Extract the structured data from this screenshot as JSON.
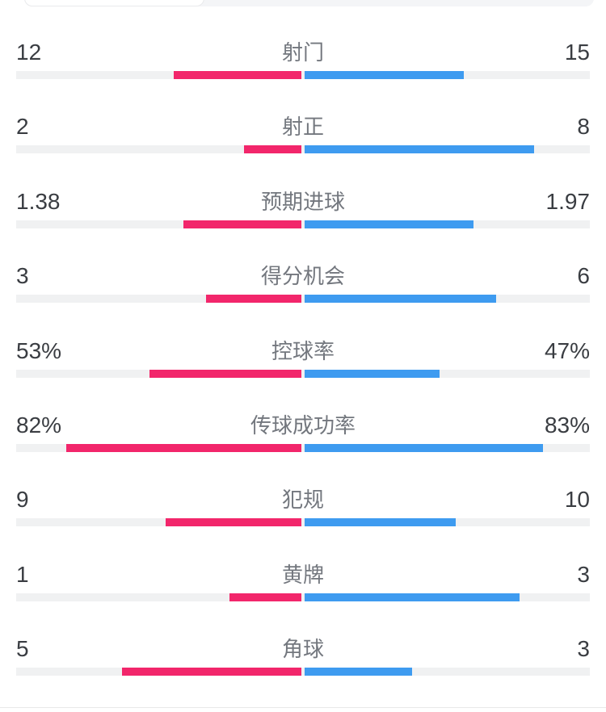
{
  "colors": {
    "home": "#f2266b",
    "away": "#3e9bf0",
    "track": "#f0f1f2",
    "value_text": "#3a3d42",
    "label_text": "#73777e",
    "divider": "#e9e9e9",
    "tabs_background": "#f4f5f7",
    "tab_selected_background": "#ffffff"
  },
  "stats": {
    "rows": [
      {
        "label": "射门",
        "home": "12",
        "away": "15"
      },
      {
        "label": "射正",
        "home": "2",
        "away": "8"
      },
      {
        "label": "预期进球",
        "home": "1.38",
        "away": "1.97"
      },
      {
        "label": "得分机会",
        "home": "3",
        "away": "6"
      },
      {
        "label": "控球率",
        "home": "53%",
        "away": "47%"
      },
      {
        "label": "传球成功率",
        "home": "82%",
        "away": "83%"
      },
      {
        "label": "犯规",
        "home": "9",
        "away": "10"
      },
      {
        "label": "黄牌",
        "home": "1",
        "away": "3"
      },
      {
        "label": "角球",
        "home": "5",
        "away": "3"
      }
    ]
  },
  "chart_data": {
    "type": "bar",
    "subtype": "bidirectional-comparison",
    "orientation": "horizontal, bars grow outward from center; left series pink, right series blue",
    "categories": [
      "射门",
      "射正",
      "预期进球",
      "得分机会",
      "控球率",
      "传球成功率",
      "犯规",
      "黄牌",
      "角球"
    ],
    "series": [
      {
        "name": "left-team",
        "side": "left",
        "color": "#f2266b",
        "values": [
          12,
          2,
          1.38,
          3,
          53,
          82,
          9,
          1,
          5
        ],
        "display_values": [
          "12",
          "2",
          "1.38",
          "3",
          "53%",
          "82%",
          "9",
          "1",
          "5"
        ]
      },
      {
        "name": "right-team",
        "side": "right",
        "color": "#3e9bf0",
        "values": [
          15,
          8,
          1.97,
          6,
          47,
          83,
          10,
          3,
          3
        ],
        "display_values": [
          "15",
          "8",
          "1.97",
          "6",
          "47%",
          "83%",
          "10",
          "3",
          "3"
        ]
      }
    ],
    "value_scaling": "percent rows scaled to value/100 of half-track; count rows scaled to value/(left+right) of half-track",
    "grid": false,
    "legend": false
  }
}
